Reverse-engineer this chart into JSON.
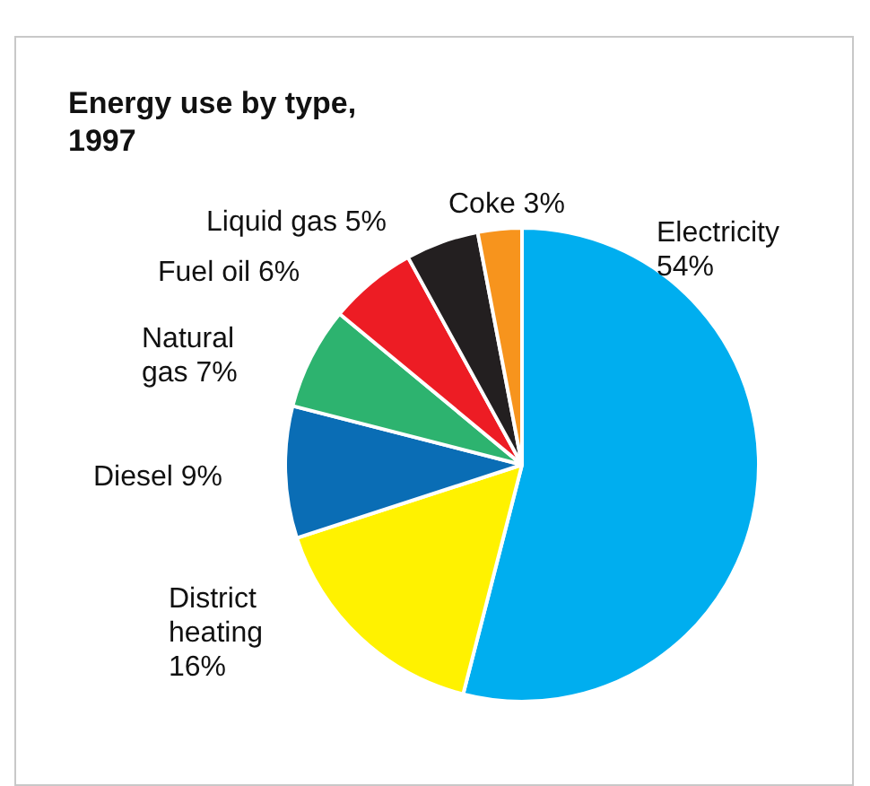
{
  "chart_data": {
    "type": "pie",
    "title": "Energy use by type, 1997",
    "categories": [
      "Electricity",
      "District heating",
      "Diesel",
      "Natural gas",
      "Fuel oil",
      "Liquid gas",
      "Coke"
    ],
    "values": [
      54,
      16,
      9,
      7,
      6,
      5,
      3
    ],
    "value_labels": [
      "54%",
      "16%",
      "9%",
      "7%",
      "6%",
      "5%",
      "3%"
    ],
    "colors": [
      "#00aeef",
      "#fff200",
      "#0a6db5",
      "#2db36f",
      "#ed1c24",
      "#231f20",
      "#f7941d"
    ]
  }
}
